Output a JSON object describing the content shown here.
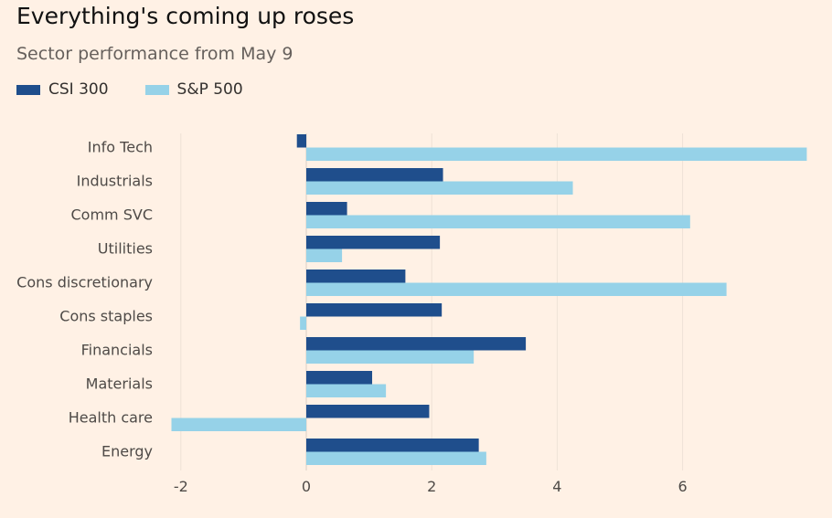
{
  "chart_data": {
    "type": "bar",
    "orientation": "horizontal",
    "title": "Everything's coming up roses",
    "subtitle": "Sector performance from May 9",
    "xlabel": "",
    "ylabel": "",
    "xlim": [
      -2.15,
      8.0
    ],
    "xticks": [
      -2,
      0,
      2,
      4,
      6
    ],
    "xtick_labels": [
      "-2",
      "0",
      "2",
      "4",
      "6"
    ],
    "grid": true,
    "legend_position": "top-left",
    "categories": [
      "Info Tech",
      "Industrials",
      "Comm SVC",
      "Utilities",
      "Cons discretionary",
      "Cons staples",
      "Financials",
      "Materials",
      "Health care",
      "Energy"
    ],
    "series": [
      {
        "name": "CSI 300",
        "color": "#1F4E8C",
        "values": [
          -0.15,
          2.18,
          0.65,
          2.13,
          1.58,
          2.16,
          3.5,
          1.05,
          1.96,
          2.75
        ]
      },
      {
        "name": "S&P 500",
        "color": "#96D2E8",
        "values": [
          7.98,
          4.25,
          6.12,
          0.57,
          6.7,
          -0.1,
          2.67,
          1.27,
          -2.15,
          2.87
        ]
      }
    ]
  },
  "colors": {
    "background": "#FFF1E5",
    "gridline": "#EEE2D6",
    "zero_line": "#D9CFC5"
  }
}
